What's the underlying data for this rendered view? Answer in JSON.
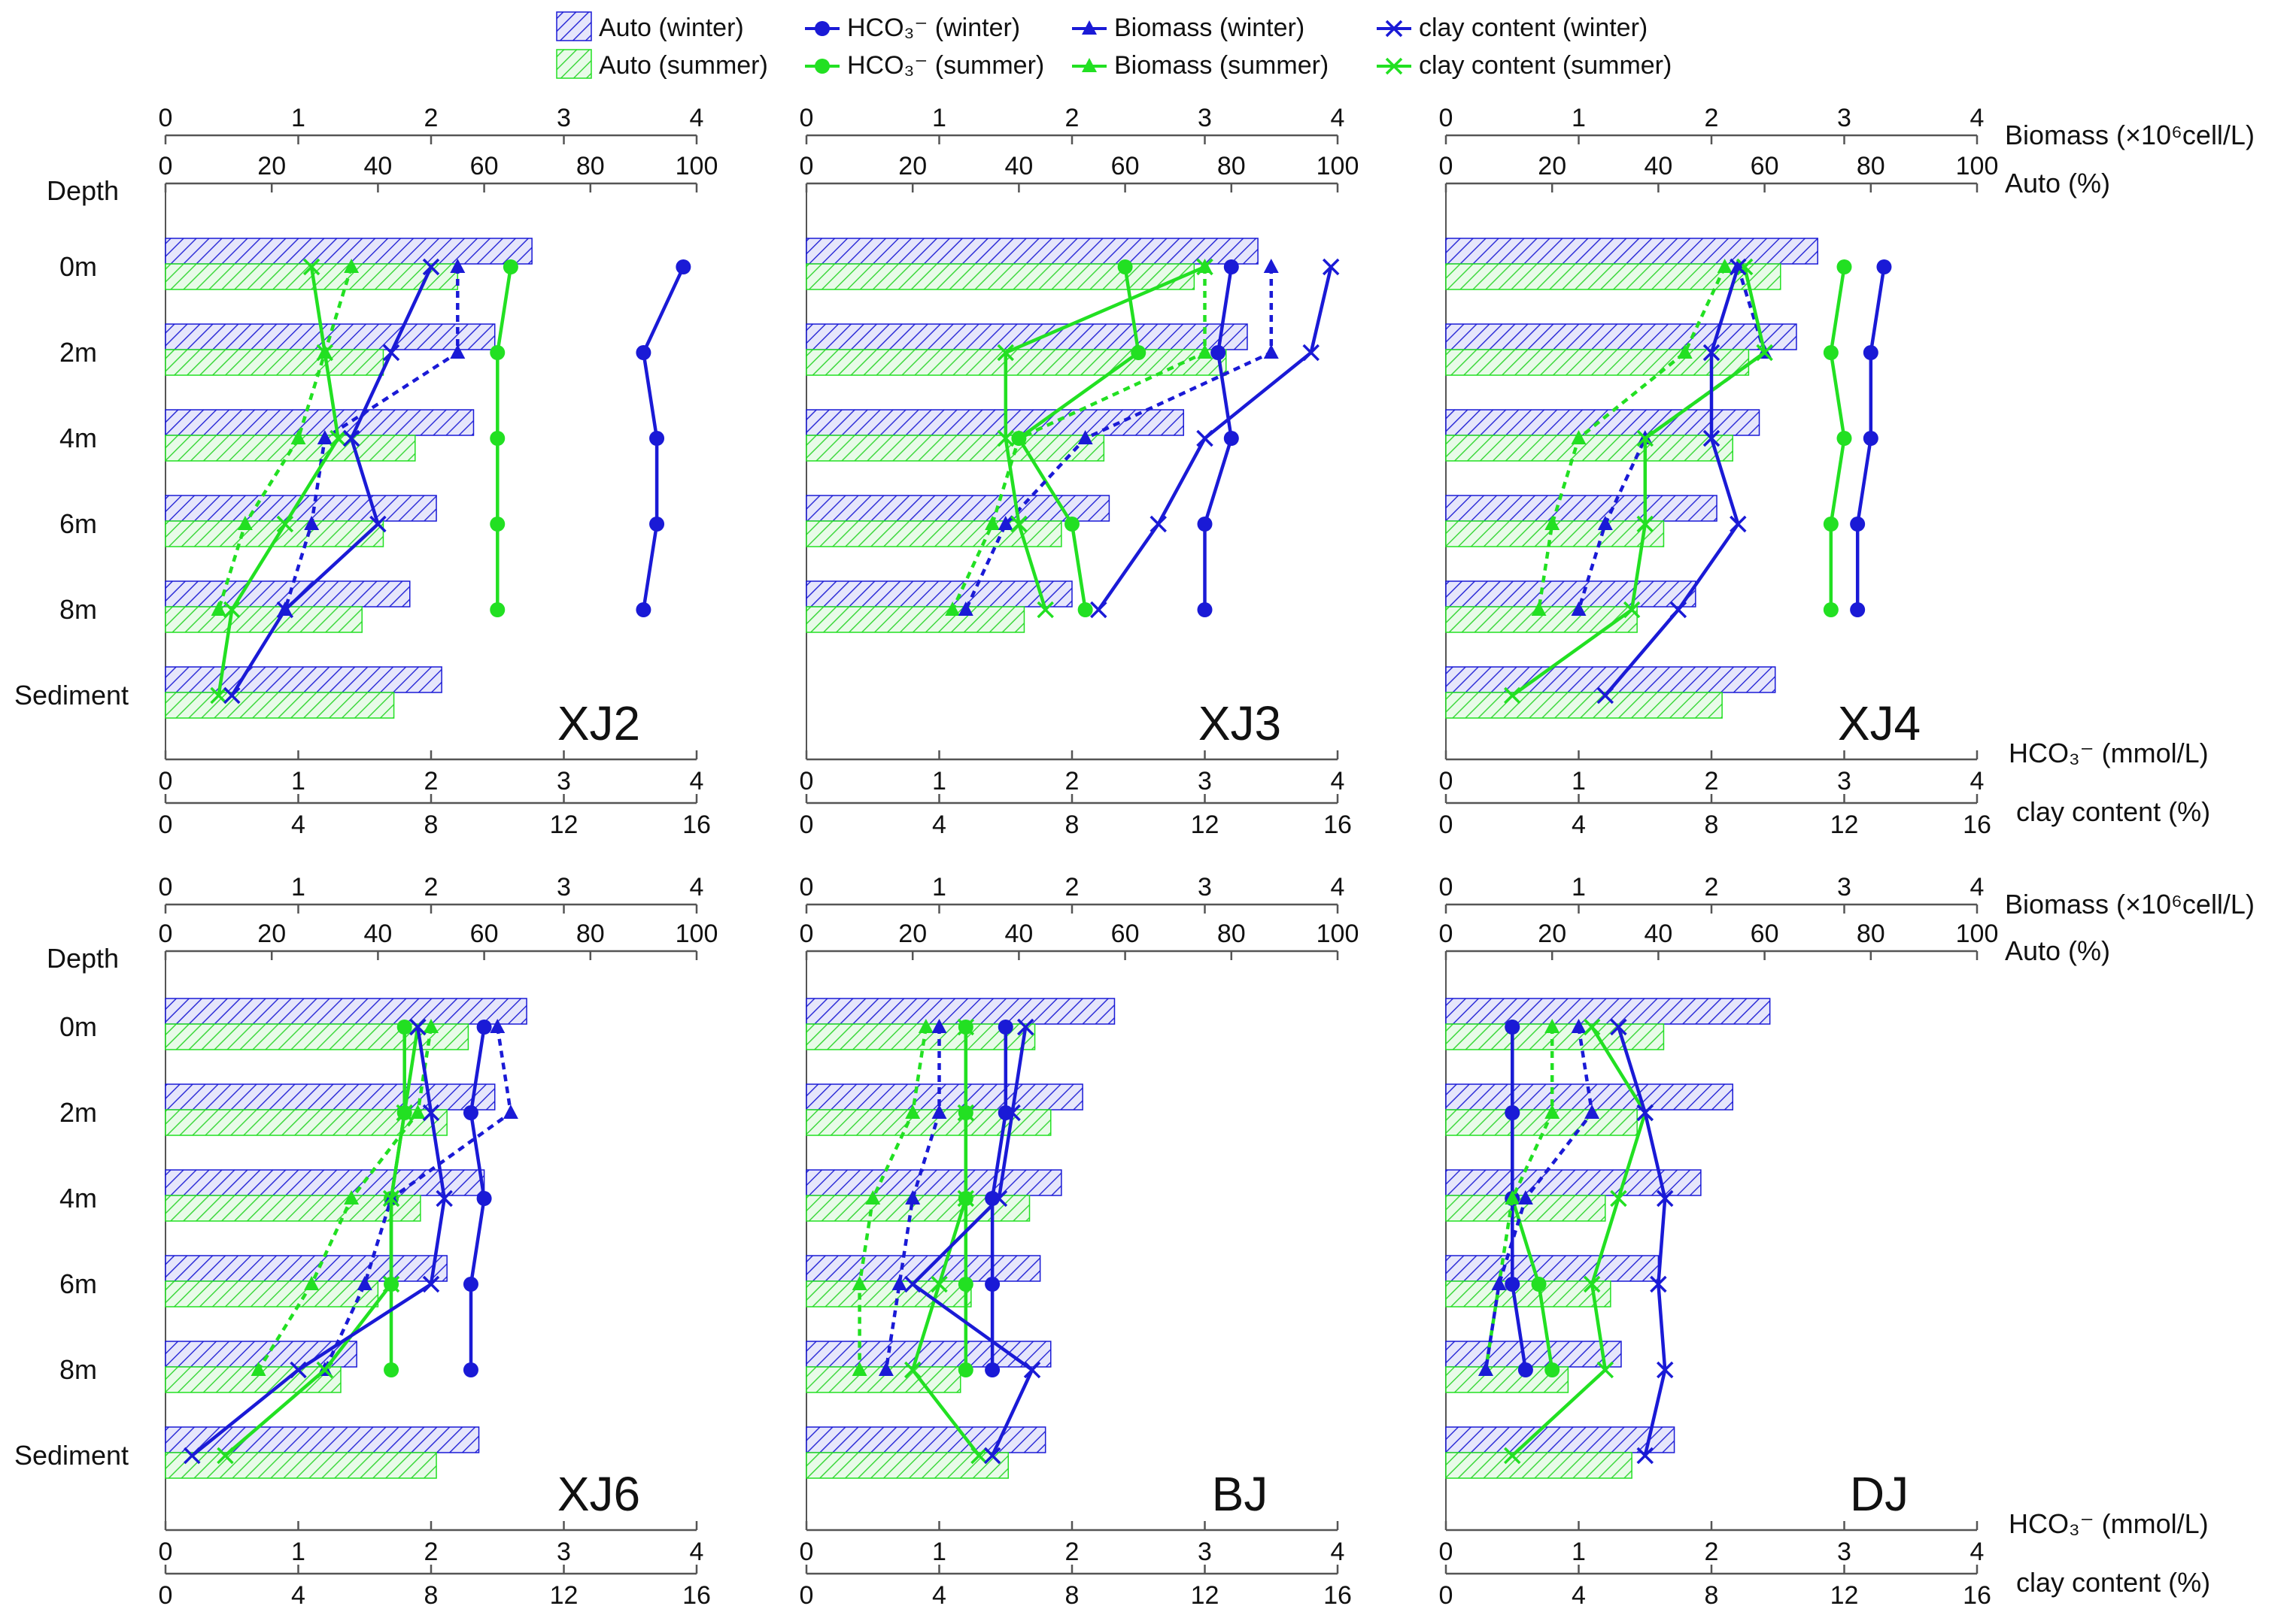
{
  "legend": [
    {
      "key": "auto_w",
      "label": "Auto (winter)"
    },
    {
      "key": "auto_s",
      "label": "Auto (summer)"
    },
    {
      "key": "hco3_w",
      "label": "HCO₃⁻ (winter)"
    },
    {
      "key": "hco3_s",
      "label": "HCO₃⁻ (summer)"
    },
    {
      "key": "bio_w",
      "label": "Biomass (winter)"
    },
    {
      "key": "bio_s",
      "label": "Biomass (summer)"
    },
    {
      "key": "clay_w",
      "label": "clay content (winter)"
    },
    {
      "key": "clay_s",
      "label": "clay content (summer)"
    }
  ],
  "colors": {
    "winter": "#1a1ad6",
    "summer": "#22e022",
    "axis": "#555555"
  },
  "axes": {
    "biomass": {
      "label": "Biomass (×10⁶cell/L)",
      "ticks": [
        "0",
        "1",
        "2",
        "3",
        "4"
      ]
    },
    "auto": {
      "label": "Auto (%)",
      "ticks": [
        "0",
        "20",
        "40",
        "60",
        "80",
        "100"
      ]
    },
    "hco3": {
      "label": "HCO₃⁻ (mmol/L)",
      "ticks": [
        "0",
        "1",
        "2",
        "3",
        "4"
      ]
    },
    "clay": {
      "label": "clay content (%)",
      "ticks": [
        "0",
        "4",
        "8",
        "12",
        "16"
      ]
    },
    "depth_title": "Depth",
    "depth_labels": [
      "0m",
      "2m",
      "4m",
      "6m",
      "8m",
      "Sediment"
    ]
  },
  "chart_data": [
    {
      "type": "bar+line",
      "site": "XJ2",
      "auto_w": [
        69,
        62,
        58,
        51,
        46,
        52
      ],
      "auto_s": [
        55,
        41,
        47,
        41,
        37,
        43
      ],
      "hco3_w": [
        3.9,
        3.6,
        3.7,
        3.7,
        3.6,
        null
      ],
      "hco3_s": [
        2.6,
        2.5,
        2.5,
        2.5,
        2.5,
        null
      ],
      "bio_w": [
        2.2,
        2.2,
        1.2,
        1.1,
        0.9,
        null
      ],
      "bio_s": [
        1.4,
        1.2,
        1.0,
        0.6,
        0.4,
        null
      ],
      "clay_w": [
        8.0,
        6.8,
        5.6,
        6.4,
        3.6,
        2.0
      ],
      "clay_s": [
        4.4,
        4.8,
        5.2,
        3.6,
        2.0,
        1.6
      ]
    },
    {
      "type": "bar+line",
      "site": "XJ3",
      "auto_w": [
        85,
        83,
        71,
        57,
        50,
        null
      ],
      "auto_s": [
        73,
        79,
        56,
        48,
        41,
        null
      ],
      "hco3_w": [
        3.2,
        3.1,
        3.2,
        3.0,
        3.0,
        null
      ],
      "hco3_s": [
        2.4,
        2.5,
        1.6,
        2.0,
        2.1,
        null
      ],
      "bio_w": [
        3.5,
        3.5,
        2.1,
        1.5,
        1.2,
        null
      ],
      "bio_s": [
        3.0,
        3.0,
        1.6,
        1.4,
        1.1,
        null
      ],
      "clay_w": [
        15.8,
        15.2,
        12.0,
        10.6,
        8.8,
        null
      ],
      "clay_s": [
        12.0,
        6.0,
        6.0,
        6.4,
        7.2,
        null
      ]
    },
    {
      "type": "bar+line",
      "site": "XJ4",
      "auto_w": [
        70,
        66,
        59,
        51,
        47,
        62
      ],
      "auto_s": [
        63,
        57,
        54,
        41,
        36,
        52
      ],
      "hco3_w": [
        3.3,
        3.2,
        3.2,
        3.1,
        3.1,
        null
      ],
      "hco3_s": [
        3.0,
        2.9,
        3.0,
        2.9,
        2.9,
        null
      ],
      "bio_w": [
        2.2,
        2.4,
        1.5,
        1.2,
        1.0,
        null
      ],
      "bio_s": [
        2.1,
        1.8,
        1.0,
        0.8,
        0.7,
        null
      ],
      "clay_w": [
        8.8,
        8.0,
        8.0,
        8.8,
        7.0,
        4.8
      ],
      "clay_s": [
        9.0,
        9.6,
        6.0,
        6.0,
        5.6,
        2.0
      ]
    },
    {
      "type": "bar+line",
      "site": "XJ6",
      "auto_w": [
        68,
        62,
        60,
        53,
        36,
        59
      ],
      "auto_s": [
        57,
        53,
        48,
        40,
        33,
        51
      ],
      "hco3_w": [
        2.4,
        2.3,
        2.4,
        2.3,
        2.3,
        null
      ],
      "hco3_s": [
        1.8,
        1.8,
        1.7,
        1.7,
        1.7,
        null
      ],
      "bio_w": [
        2.5,
        2.6,
        1.7,
        1.5,
        1.2,
        null
      ],
      "bio_s": [
        2.0,
        1.9,
        1.4,
        1.1,
        0.7,
        null
      ],
      "clay_w": [
        7.6,
        8.0,
        8.4,
        8.0,
        4.0,
        0.8
      ],
      "clay_s": [
        7.6,
        7.2,
        6.8,
        6.8,
        4.8,
        1.8
      ]
    },
    {
      "type": "bar+line",
      "site": "BJ",
      "auto_w": [
        58,
        52,
        48,
        44,
        46,
        45
      ],
      "auto_s": [
        43,
        46,
        42,
        31,
        29,
        38
      ],
      "hco3_w": [
        1.5,
        1.5,
        1.4,
        1.4,
        1.4,
        null
      ],
      "hco3_s": [
        1.2,
        1.2,
        1.2,
        1.2,
        1.2,
        null
      ],
      "bio_w": [
        1.0,
        1.0,
        0.8,
        0.7,
        0.6,
        null
      ],
      "bio_s": [
        0.9,
        0.8,
        0.5,
        0.4,
        0.4,
        null
      ],
      "clay_w": [
        6.6,
        6.2,
        5.8,
        3.2,
        6.8,
        5.6
      ],
      "clay_s": [
        4.8,
        4.8,
        4.8,
        4.0,
        3.2,
        5.2
      ]
    },
    {
      "type": "bar+line",
      "site": "DJ",
      "auto_w": [
        61,
        54,
        48,
        40,
        33,
        43
      ],
      "auto_s": [
        41,
        36,
        30,
        31,
        23,
        35
      ],
      "hco3_w": [
        0.5,
        0.5,
        0.5,
        0.5,
        0.6,
        null
      ],
      "hco3_s": [
        0.5,
        0.5,
        0.5,
        0.7,
        0.8,
        null
      ],
      "bio_w": [
        1.0,
        1.1,
        0.6,
        0.4,
        0.3,
        null
      ],
      "bio_s": [
        0.8,
        0.8,
        0.5,
        0.4,
        0.3,
        null
      ],
      "clay_w": [
        5.2,
        6.0,
        6.6,
        6.4,
        6.6,
        6.0
      ],
      "clay_s": [
        4.4,
        6.0,
        5.2,
        4.4,
        4.8,
        2.0
      ]
    }
  ]
}
